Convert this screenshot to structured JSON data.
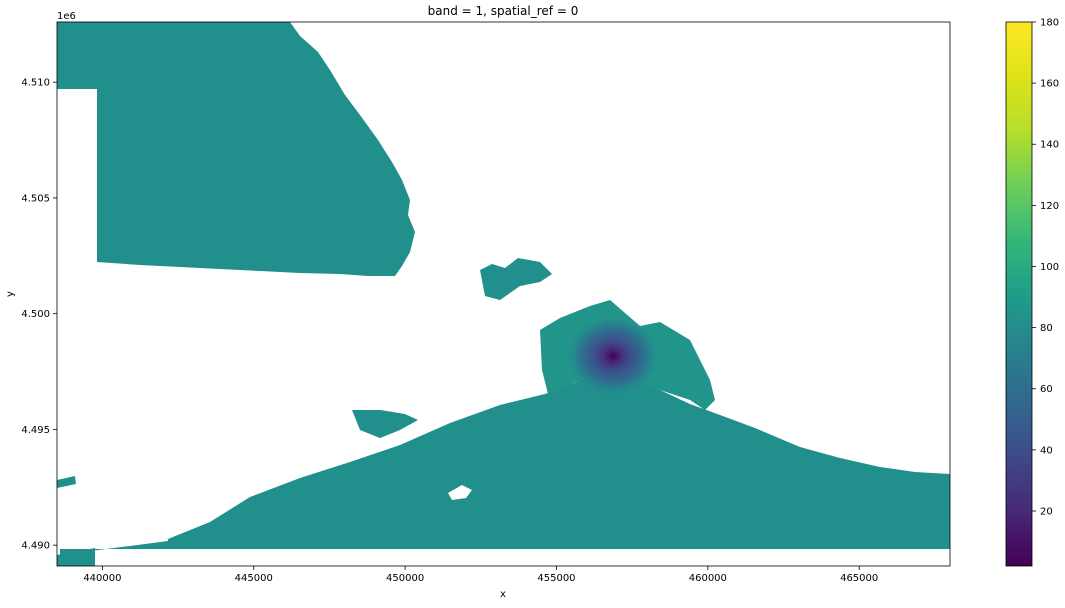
{
  "chart_data": {
    "type": "heatmap",
    "title": "band = 1, spatial_ref = 0",
    "xlabel": "x",
    "ylabel": "y",
    "y_offset_label": "1e6",
    "xlim": [
      438500,
      468000
    ],
    "ylim": [
      4489100,
      4512600
    ],
    "x_ticks": [
      440000,
      445000,
      450000,
      455000,
      460000,
      465000
    ],
    "x_tick_labels": [
      "440000",
      "445000",
      "450000",
      "455000",
      "460000",
      "465000"
    ],
    "y_ticks": [
      4490000,
      4495000,
      4500000,
      4505000,
      4510000
    ],
    "y_tick_labels": [
      "4.490",
      "4.495",
      "4.500",
      "4.505",
      "4.510"
    ],
    "colorbar": {
      "colormap": "viridis",
      "range": [
        2,
        180
      ],
      "ticks": [
        20,
        40,
        60,
        80,
        100,
        120,
        140,
        160,
        180
      ],
      "tick_labels": [
        "20",
        "40",
        "60",
        "80",
        "100",
        "120",
        "140",
        "160",
        "180"
      ]
    },
    "typical_value": 90,
    "minimum": {
      "x": 456900,
      "y": 4498200,
      "value": 2
    },
    "nodata_color": "#ffffff",
    "grid": false
  }
}
